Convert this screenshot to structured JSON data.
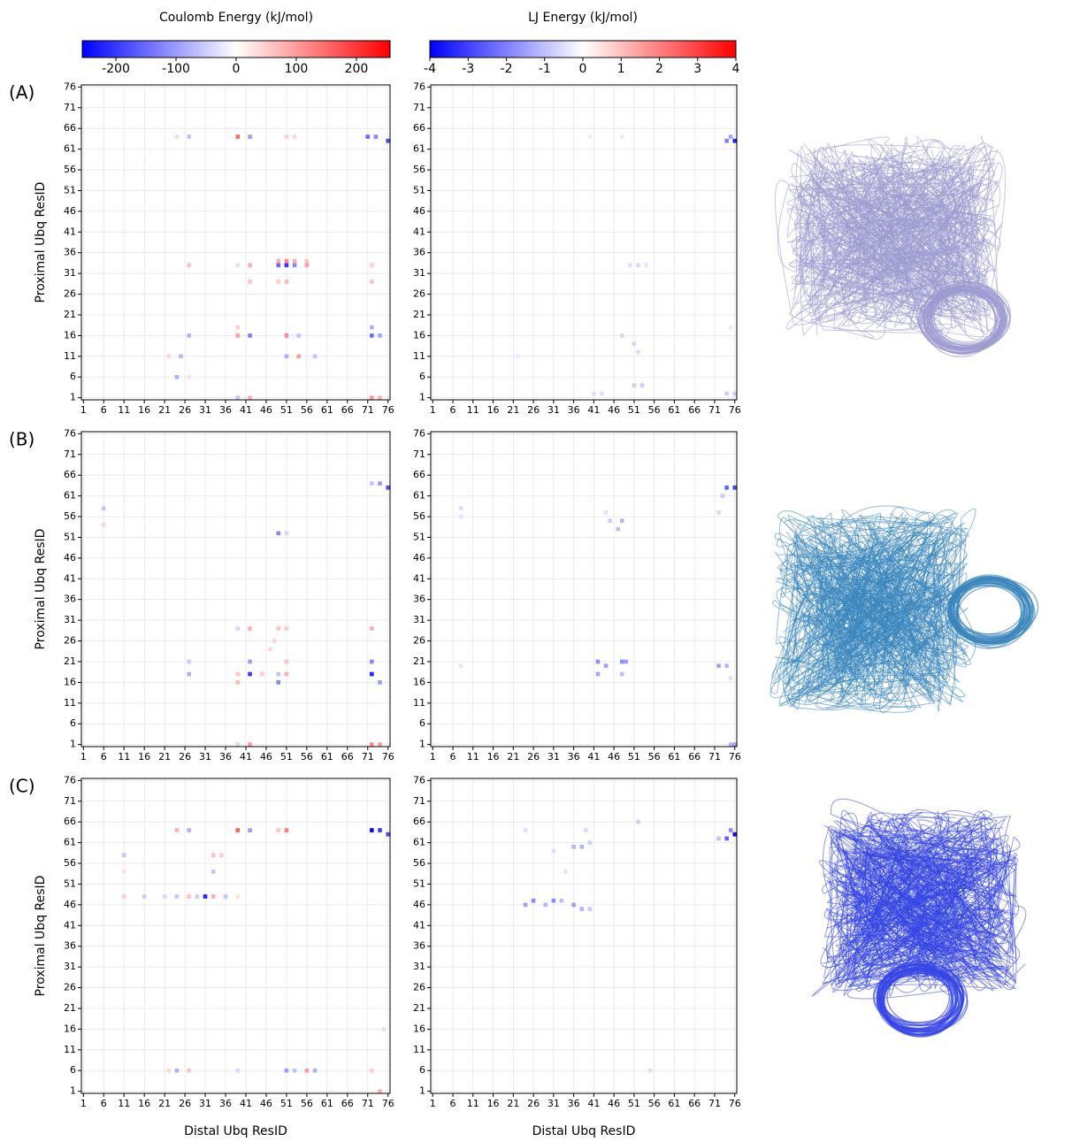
{
  "colorbars": [
    {
      "title": "Coulomb Energy (kJ/mol)",
      "lim": [
        -256,
        256
      ],
      "ticks": [
        -200,
        -100,
        0,
        100,
        200
      ],
      "colors": [
        "#0000ff",
        "#ffffff",
        "#ff0000"
      ]
    },
    {
      "title": "LJ Energy (kJ/mol)",
      "lim": [
        -4,
        4
      ],
      "ticks": [
        -4,
        -3,
        -2,
        -1,
        0,
        1,
        2,
        3,
        4
      ],
      "colors": [
        "#0000ff",
        "#ffffff",
        "#ff0000"
      ]
    }
  ],
  "chart_data": [
    {
      "type": "heatmap",
      "panel_label": "(A)",
      "ylabel": "Proximal Ubq ResID",
      "xlim": [
        0.5,
        76.5
      ],
      "ylim": [
        0.5,
        76.5
      ],
      "xticks": [
        1,
        6,
        11,
        16,
        21,
        26,
        31,
        36,
        41,
        46,
        51,
        56,
        61,
        66,
        71,
        76
      ],
      "yticks": [
        1,
        6,
        11,
        16,
        21,
        26,
        31,
        36,
        41,
        46,
        51,
        56,
        61,
        66,
        71,
        76
      ],
      "grid": true,
      "cells": [
        [
          39,
          64,
          150
        ],
        [
          42,
          64,
          -100
        ],
        [
          71,
          64,
          -150
        ],
        [
          73,
          64,
          -120
        ],
        [
          76,
          63,
          -180
        ],
        [
          24,
          64,
          40
        ],
        [
          27,
          64,
          -60
        ],
        [
          51,
          64,
          50
        ],
        [
          53,
          64,
          40
        ],
        [
          51,
          33,
          -200
        ],
        [
          51,
          34,
          120
        ],
        [
          49,
          33,
          -150
        ],
        [
          49,
          34,
          80
        ],
        [
          53,
          33,
          -120
        ],
        [
          53,
          34,
          80
        ],
        [
          56,
          33,
          100
        ],
        [
          56,
          34,
          60
        ],
        [
          42,
          33,
          80
        ],
        [
          39,
          33,
          -30
        ],
        [
          27,
          33,
          60
        ],
        [
          72,
          33,
          50
        ],
        [
          42,
          29,
          60
        ],
        [
          49,
          29,
          50
        ],
        [
          51,
          29,
          70
        ],
        [
          72,
          29,
          60
        ],
        [
          27,
          16,
          -80
        ],
        [
          39,
          16,
          100
        ],
        [
          42,
          16,
          -130
        ],
        [
          51,
          16,
          120
        ],
        [
          54,
          16,
          -60
        ],
        [
          72,
          16,
          -150
        ],
        [
          74,
          16,
          -90
        ],
        [
          72,
          18,
          -80
        ],
        [
          39,
          18,
          50
        ],
        [
          25,
          11,
          -70
        ],
        [
          51,
          11,
          -80
        ],
        [
          54,
          11,
          100
        ],
        [
          58,
          11,
          -60
        ],
        [
          22,
          11,
          40
        ],
        [
          24,
          6,
          -80
        ],
        [
          27,
          6,
          30
        ],
        [
          39,
          1,
          -60
        ],
        [
          42,
          1,
          80
        ],
        [
          72,
          1,
          100
        ],
        [
          74,
          1,
          80
        ]
      ]
    },
    {
      "type": "heatmap",
      "xlim": [
        0.5,
        76.5
      ],
      "ylim": [
        0.5,
        76.5
      ],
      "xticks": [
        1,
        6,
        11,
        16,
        21,
        26,
        31,
        36,
        41,
        46,
        51,
        56,
        61,
        66,
        71,
        76
      ],
      "yticks": [
        1,
        6,
        11,
        16,
        21,
        26,
        31,
        36,
        41,
        46,
        51,
        56,
        61,
        66,
        71,
        76
      ],
      "grid": true,
      "cells": [
        [
          74,
          63,
          -2
        ],
        [
          76,
          63,
          -3.5
        ],
        [
          75,
          64,
          -1.5
        ],
        [
          40,
          64,
          -0.3
        ],
        [
          48,
          64,
          -0.3
        ],
        [
          50,
          33,
          -0.5
        ],
        [
          52,
          33,
          -0.6
        ],
        [
          54,
          33,
          -0.4
        ],
        [
          48,
          16,
          -0.6
        ],
        [
          51,
          14,
          -0.7
        ],
        [
          52,
          12,
          -0.6
        ],
        [
          51,
          4,
          -0.8
        ],
        [
          53,
          4,
          -0.8
        ],
        [
          41,
          2,
          -0.5
        ],
        [
          43,
          2,
          -0.5
        ],
        [
          74,
          2,
          -0.8
        ],
        [
          76,
          2,
          -0.8
        ],
        [
          22,
          11,
          -0.3
        ],
        [
          75,
          18,
          -0.3
        ]
      ]
    },
    {
      "type": "heatmap",
      "panel_label": "(B)",
      "ylabel": "Proximal Ubq ResID",
      "xlim": [
        0.5,
        76.5
      ],
      "ylim": [
        0.5,
        76.5
      ],
      "xticks": [
        1,
        6,
        11,
        16,
        21,
        26,
        31,
        36,
        41,
        46,
        51,
        56,
        61,
        66,
        71,
        76
      ],
      "yticks": [
        1,
        6,
        11,
        16,
        21,
        26,
        31,
        36,
        41,
        46,
        51,
        56,
        61,
        66,
        71,
        76
      ],
      "grid": true,
      "cells": [
        [
          6,
          58,
          -60
        ],
        [
          6,
          54,
          40
        ],
        [
          76,
          63,
          -180
        ],
        [
          74,
          64,
          -100
        ],
        [
          72,
          64,
          -60
        ],
        [
          49,
          52,
          -120
        ],
        [
          51,
          52,
          -40
        ],
        [
          42,
          29,
          80
        ],
        [
          39,
          29,
          -40
        ],
        [
          72,
          29,
          80
        ],
        [
          49,
          29,
          60
        ],
        [
          51,
          29,
          50
        ],
        [
          27,
          18,
          -80
        ],
        [
          27,
          21,
          -50
        ],
        [
          39,
          18,
          60
        ],
        [
          39,
          16,
          70
        ],
        [
          42,
          18,
          -200
        ],
        [
          42,
          21,
          -100
        ],
        [
          45,
          18,
          50
        ],
        [
          49,
          16,
          -120
        ],
        [
          49,
          18,
          -60
        ],
        [
          51,
          18,
          80
        ],
        [
          51,
          21,
          60
        ],
        [
          72,
          18,
          -220
        ],
        [
          72,
          21,
          -120
        ],
        [
          74,
          16,
          -100
        ],
        [
          42,
          1,
          100
        ],
        [
          72,
          1,
          120
        ],
        [
          74,
          1,
          100
        ],
        [
          39,
          1,
          -40
        ],
        [
          47,
          24,
          40
        ],
        [
          48,
          26,
          40
        ]
      ]
    },
    {
      "type": "heatmap",
      "xlim": [
        0.5,
        76.5
      ],
      "ylim": [
        0.5,
        76.5
      ],
      "xticks": [
        1,
        6,
        11,
        16,
        21,
        26,
        31,
        36,
        41,
        46,
        51,
        56,
        61,
        66,
        71,
        76
      ],
      "yticks": [
        1,
        6,
        11,
        16,
        21,
        26,
        31,
        36,
        41,
        46,
        51,
        56,
        61,
        66,
        71,
        76
      ],
      "grid": true,
      "cells": [
        [
          8,
          58,
          -0.5
        ],
        [
          8,
          56,
          -0.4
        ],
        [
          8,
          20,
          -0.4
        ],
        [
          45,
          55,
          -0.8
        ],
        [
          47,
          53,
          -1.0
        ],
        [
          48,
          55,
          -1.2
        ],
        [
          44,
          57,
          -0.5
        ],
        [
          74,
          63,
          -2.5
        ],
        [
          76,
          63,
          -3
        ],
        [
          73,
          61,
          -0.8
        ],
        [
          72,
          57,
          -0.6
        ],
        [
          42,
          21,
          -1.8
        ],
        [
          42,
          18,
          -1.5
        ],
        [
          44,
          20,
          -1.5
        ],
        [
          48,
          21,
          -1.8
        ],
        [
          49,
          21,
          -1.5
        ],
        [
          48,
          18,
          -1.0
        ],
        [
          72,
          20,
          -1.5
        ],
        [
          74,
          20,
          -1.2
        ],
        [
          75,
          17,
          -0.5
        ],
        [
          75,
          1,
          -1.2
        ],
        [
          76,
          1,
          -1.5
        ]
      ]
    },
    {
      "type": "heatmap",
      "panel_label": "(C)",
      "ylabel": "Proximal Ubq ResID",
      "xlabel": "Distal Ubq ResID",
      "xlim": [
        0.5,
        76.5
      ],
      "ylim": [
        0.5,
        76.5
      ],
      "xticks": [
        1,
        6,
        11,
        16,
        21,
        26,
        31,
        36,
        41,
        46,
        51,
        56,
        61,
        66,
        71,
        76
      ],
      "yticks": [
        1,
        6,
        11,
        16,
        21,
        26,
        31,
        36,
        41,
        46,
        51,
        56,
        61,
        66,
        71,
        76
      ],
      "grid": true,
      "cells": [
        [
          72,
          64,
          -250
        ],
        [
          74,
          64,
          -200
        ],
        [
          76,
          63,
          -180
        ],
        [
          39,
          64,
          160
        ],
        [
          42,
          64,
          -100
        ],
        [
          24,
          64,
          80
        ],
        [
          27,
          64,
          -80
        ],
        [
          51,
          64,
          130
        ],
        [
          49,
          64,
          60
        ],
        [
          11,
          58,
          -60
        ],
        [
          33,
          58,
          60
        ],
        [
          35,
          58,
          50
        ],
        [
          33,
          54,
          -60
        ],
        [
          11,
          54,
          30
        ],
        [
          11,
          48,
          50
        ],
        [
          16,
          48,
          -50
        ],
        [
          21,
          48,
          -40
        ],
        [
          24,
          48,
          -60
        ],
        [
          27,
          48,
          60
        ],
        [
          29,
          48,
          -50
        ],
        [
          31,
          48,
          -220
        ],
        [
          33,
          48,
          80
        ],
        [
          36,
          48,
          -60
        ],
        [
          39,
          48,
          30
        ],
        [
          24,
          6,
          -80
        ],
        [
          22,
          6,
          40
        ],
        [
          27,
          6,
          60
        ],
        [
          39,
          6,
          -40
        ],
        [
          51,
          6,
          -100
        ],
        [
          53,
          6,
          -60
        ],
        [
          56,
          6,
          100
        ],
        [
          58,
          6,
          -80
        ],
        [
          72,
          6,
          50
        ],
        [
          74,
          1,
          80
        ],
        [
          75,
          16,
          -30
        ]
      ]
    },
    {
      "type": "heatmap",
      "xlabel": "Distal Ubq ResID",
      "xlim": [
        0.5,
        76.5
      ],
      "ylim": [
        0.5,
        76.5
      ],
      "xticks": [
        1,
        6,
        11,
        16,
        21,
        26,
        31,
        36,
        41,
        46,
        51,
        56,
        61,
        66,
        71,
        76
      ],
      "yticks": [
        1,
        6,
        11,
        16,
        21,
        26,
        31,
        36,
        41,
        46,
        51,
        56,
        61,
        66,
        71,
        76
      ],
      "grid": true,
      "cells": [
        [
          76,
          63,
          -3.8
        ],
        [
          74,
          62,
          -2.5
        ],
        [
          75,
          64,
          -1.8
        ],
        [
          72,
          62,
          -1
        ],
        [
          24,
          46,
          -1.5
        ],
        [
          26,
          47,
          -1.8
        ],
        [
          29,
          46,
          -1.2
        ],
        [
          31,
          47,
          -1.8
        ],
        [
          33,
          47,
          -1
        ],
        [
          36,
          46,
          -1.5
        ],
        [
          38,
          45,
          -1.2
        ],
        [
          40,
          45,
          -0.8
        ],
        [
          36,
          60,
          -1.2
        ],
        [
          38,
          60,
          -1.2
        ],
        [
          40,
          61,
          -0.8
        ],
        [
          39,
          64,
          -0.6
        ],
        [
          52,
          66,
          -0.8
        ],
        [
          24,
          64,
          -0.5
        ],
        [
          31,
          59,
          -0.5
        ],
        [
          34,
          54,
          -0.4
        ],
        [
          55,
          6,
          -0.5
        ]
      ]
    }
  ]
}
